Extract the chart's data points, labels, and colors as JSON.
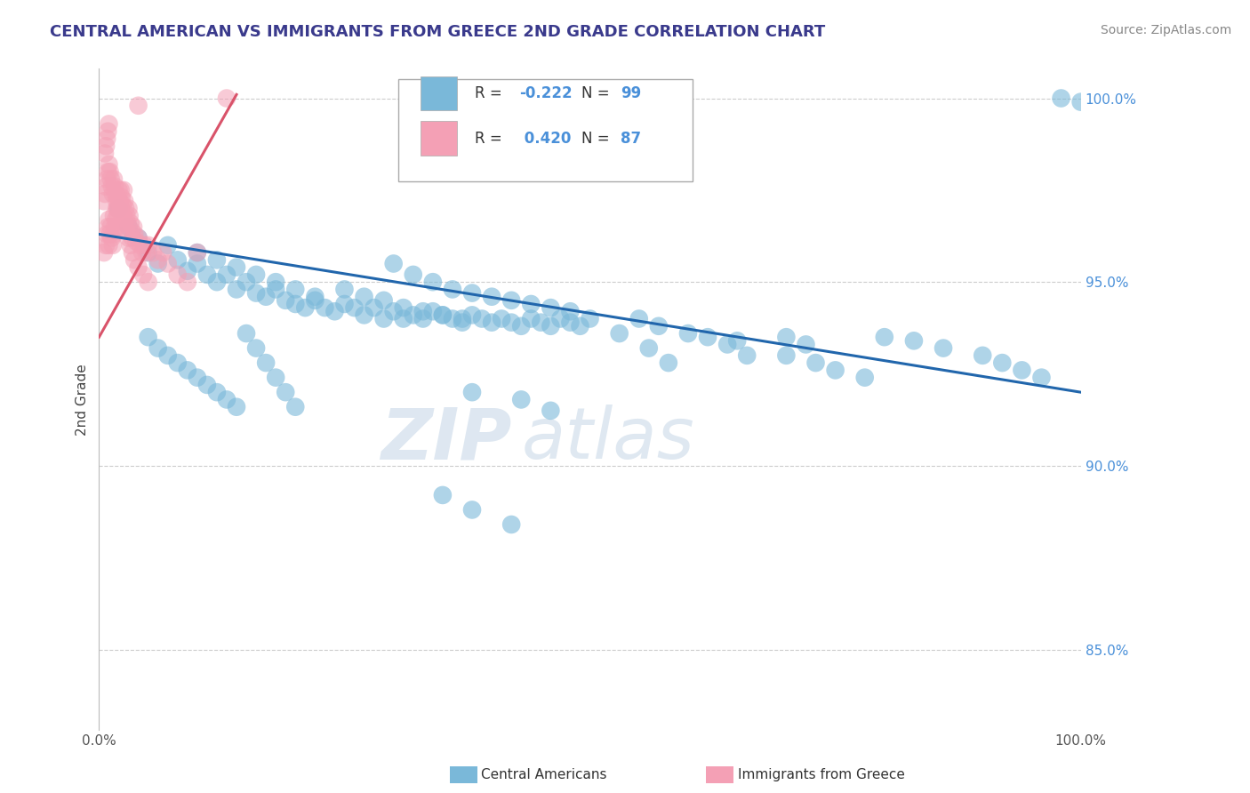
{
  "title": "CENTRAL AMERICAN VS IMMIGRANTS FROM GREECE 2ND GRADE CORRELATION CHART",
  "source": "Source: ZipAtlas.com",
  "ylabel": "2nd Grade",
  "xlim": [
    0.0,
    1.0
  ],
  "ylim": [
    0.828,
    1.008
  ],
  "yticks": [
    0.85,
    0.9,
    0.95,
    1.0
  ],
  "blue_R": -0.222,
  "blue_N": 99,
  "pink_R": 0.42,
  "pink_N": 87,
  "blue_color": "#7ab8d9",
  "pink_color": "#f4a0b5",
  "blue_line_color": "#2166ac",
  "pink_line_color": "#d9536a",
  "background_color": "#ffffff",
  "watermark_zip": "ZIP",
  "watermark_atlas": "atlas",
  "title_color": "#3a3a8c",
  "legend_label_blue": "Central Americans",
  "legend_label_pink": "Immigrants from Greece",
  "blue_scatter_x": [
    0.02,
    0.03,
    0.04,
    0.05,
    0.06,
    0.07,
    0.08,
    0.09,
    0.1,
    0.11,
    0.12,
    0.13,
    0.14,
    0.15,
    0.16,
    0.17,
    0.18,
    0.19,
    0.2,
    0.21,
    0.22,
    0.23,
    0.24,
    0.25,
    0.26,
    0.27,
    0.28,
    0.29,
    0.3,
    0.31,
    0.32,
    0.33,
    0.34,
    0.35,
    0.36,
    0.37,
    0.38,
    0.39,
    0.4,
    0.41,
    0.42,
    0.43,
    0.44,
    0.45,
    0.46,
    0.47,
    0.48,
    0.49,
    0.5,
    0.3,
    0.32,
    0.34,
    0.36,
    0.38,
    0.4,
    0.42,
    0.44,
    0.46,
    0.48,
    0.25,
    0.27,
    0.29,
    0.31,
    0.33,
    0.35,
    0.37,
    0.1,
    0.12,
    0.14,
    0.16,
    0.18,
    0.2,
    0.22,
    0.55,
    0.57,
    0.6,
    0.65,
    0.7,
    0.72,
    0.35,
    0.38,
    0.42,
    0.98,
    1.0
  ],
  "blue_scatter_y": [
    0.97,
    0.965,
    0.962,
    0.958,
    0.955,
    0.96,
    0.956,
    0.953,
    0.955,
    0.952,
    0.95,
    0.952,
    0.948,
    0.95,
    0.947,
    0.946,
    0.948,
    0.945,
    0.944,
    0.943,
    0.945,
    0.943,
    0.942,
    0.944,
    0.943,
    0.941,
    0.943,
    0.94,
    0.942,
    0.94,
    0.941,
    0.94,
    0.942,
    0.941,
    0.94,
    0.939,
    0.941,
    0.94,
    0.939,
    0.94,
    0.939,
    0.938,
    0.94,
    0.939,
    0.938,
    0.94,
    0.939,
    0.938,
    0.94,
    0.955,
    0.952,
    0.95,
    0.948,
    0.947,
    0.946,
    0.945,
    0.944,
    0.943,
    0.942,
    0.948,
    0.946,
    0.945,
    0.943,
    0.942,
    0.941,
    0.94,
    0.958,
    0.956,
    0.954,
    0.952,
    0.95,
    0.948,
    0.946,
    0.94,
    0.938,
    0.936,
    0.934,
    0.935,
    0.933,
    0.892,
    0.888,
    0.884,
    1.0,
    0.999
  ],
  "blue_scatter_x2": [
    0.05,
    0.06,
    0.07,
    0.08,
    0.09,
    0.1,
    0.11,
    0.12,
    0.13,
    0.14,
    0.15,
    0.16,
    0.17,
    0.18,
    0.19,
    0.2,
    0.53,
    0.38,
    0.43,
    0.46,
    0.62,
    0.64,
    0.66,
    0.56,
    0.58,
    0.7,
    0.73,
    0.75,
    0.78,
    0.8,
    0.83,
    0.86,
    0.9,
    0.92,
    0.94,
    0.96
  ],
  "blue_scatter_y2": [
    0.935,
    0.932,
    0.93,
    0.928,
    0.926,
    0.924,
    0.922,
    0.92,
    0.918,
    0.916,
    0.936,
    0.932,
    0.928,
    0.924,
    0.92,
    0.916,
    0.936,
    0.92,
    0.918,
    0.915,
    0.935,
    0.933,
    0.93,
    0.932,
    0.928,
    0.93,
    0.928,
    0.926,
    0.924,
    0.935,
    0.934,
    0.932,
    0.93,
    0.928,
    0.926,
    0.924
  ],
  "pink_scatter_x": [
    0.005,
    0.007,
    0.008,
    0.009,
    0.01,
    0.01,
    0.011,
    0.012,
    0.013,
    0.014,
    0.015,
    0.015,
    0.016,
    0.017,
    0.018,
    0.018,
    0.019,
    0.02,
    0.02,
    0.021,
    0.022,
    0.022,
    0.023,
    0.024,
    0.025,
    0.025,
    0.026,
    0.027,
    0.028,
    0.029,
    0.03,
    0.031,
    0.032,
    0.033,
    0.034,
    0.035,
    0.036,
    0.038,
    0.04,
    0.042,
    0.044,
    0.046,
    0.048,
    0.05,
    0.055,
    0.06,
    0.065,
    0.07,
    0.08,
    0.09,
    0.005,
    0.006,
    0.007,
    0.008,
    0.009,
    0.01,
    0.011,
    0.012,
    0.013,
    0.014,
    0.015,
    0.016,
    0.017,
    0.018,
    0.019,
    0.02,
    0.022,
    0.024,
    0.026,
    0.028,
    0.03,
    0.032,
    0.034,
    0.036,
    0.04,
    0.045,
    0.05,
    0.006,
    0.007,
    0.008,
    0.009,
    0.01,
    0.1,
    0.13,
    0.04
  ],
  "pink_scatter_y": [
    0.958,
    0.96,
    0.963,
    0.965,
    0.967,
    0.96,
    0.963,
    0.965,
    0.962,
    0.96,
    0.968,
    0.963,
    0.965,
    0.967,
    0.965,
    0.97,
    0.968,
    0.97,
    0.975,
    0.972,
    0.97,
    0.975,
    0.973,
    0.971,
    0.975,
    0.968,
    0.972,
    0.97,
    0.968,
    0.966,
    0.97,
    0.968,
    0.966,
    0.964,
    0.962,
    0.965,
    0.963,
    0.961,
    0.962,
    0.96,
    0.958,
    0.96,
    0.958,
    0.96,
    0.958,
    0.956,
    0.958,
    0.955,
    0.952,
    0.95,
    0.972,
    0.974,
    0.976,
    0.978,
    0.98,
    0.982,
    0.98,
    0.978,
    0.976,
    0.974,
    0.978,
    0.976,
    0.974,
    0.972,
    0.97,
    0.972,
    0.97,
    0.968,
    0.966,
    0.964,
    0.962,
    0.96,
    0.958,
    0.956,
    0.954,
    0.952,
    0.95,
    0.985,
    0.987,
    0.989,
    0.991,
    0.993,
    0.958,
    1.0,
    0.998
  ],
  "blue_trend_x": [
    0.0,
    1.0
  ],
  "blue_trend_y": [
    0.963,
    0.92
  ],
  "pink_trend_x": [
    0.0,
    0.14
  ],
  "pink_trend_y": [
    0.935,
    1.001
  ]
}
